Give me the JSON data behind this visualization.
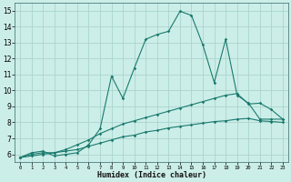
{
  "xlabel": "Humidex (Indice chaleur)",
  "x_ticks": [
    0,
    1,
    2,
    3,
    4,
    5,
    6,
    7,
    8,
    9,
    10,
    11,
    12,
    13,
    14,
    15,
    16,
    17,
    18,
    19,
    20,
    21,
    22,
    23
  ],
  "xlim": [
    -0.5,
    23.5
  ],
  "ylim": [
    5.5,
    15.5
  ],
  "y_ticks": [
    6,
    7,
    8,
    9,
    10,
    11,
    12,
    13,
    14,
    15
  ],
  "bg_color": "#cceee8",
  "grid_color": "#aad4ce",
  "line_color": "#1a7a6e",
  "line1_x": [
    0,
    1,
    2,
    3,
    4,
    5,
    6,
    7,
    8,
    9,
    10,
    11,
    12,
    13,
    14,
    15,
    16,
    17,
    18,
    19,
    20,
    21,
    22,
    23
  ],
  "line1_y": [
    5.8,
    6.1,
    6.2,
    5.9,
    6.0,
    6.1,
    6.6,
    7.6,
    10.9,
    9.5,
    11.4,
    13.2,
    13.5,
    13.7,
    14.95,
    14.7,
    12.85,
    10.5,
    13.2,
    9.7,
    9.2,
    8.2,
    8.2,
    8.2
  ],
  "line2_x": [
    0,
    1,
    2,
    3,
    4,
    5,
    6,
    7,
    8,
    9,
    10,
    11,
    12,
    13,
    14,
    15,
    16,
    17,
    18,
    19,
    20,
    21,
    22,
    23
  ],
  "line2_y": [
    5.8,
    6.0,
    6.1,
    6.1,
    6.3,
    6.6,
    6.9,
    7.3,
    7.6,
    7.9,
    8.1,
    8.3,
    8.5,
    8.7,
    8.9,
    9.1,
    9.3,
    9.5,
    9.7,
    9.8,
    9.15,
    9.2,
    8.8,
    8.2
  ],
  "line3_x": [
    0,
    1,
    2,
    3,
    4,
    5,
    6,
    7,
    8,
    9,
    10,
    11,
    12,
    13,
    14,
    15,
    16,
    17,
    18,
    19,
    20,
    21,
    22,
    23
  ],
  "line3_y": [
    5.8,
    5.9,
    6.0,
    6.1,
    6.2,
    6.3,
    6.5,
    6.7,
    6.9,
    7.1,
    7.2,
    7.4,
    7.5,
    7.65,
    7.75,
    7.85,
    7.95,
    8.05,
    8.1,
    8.2,
    8.25,
    8.1,
    8.05,
    8.0
  ]
}
